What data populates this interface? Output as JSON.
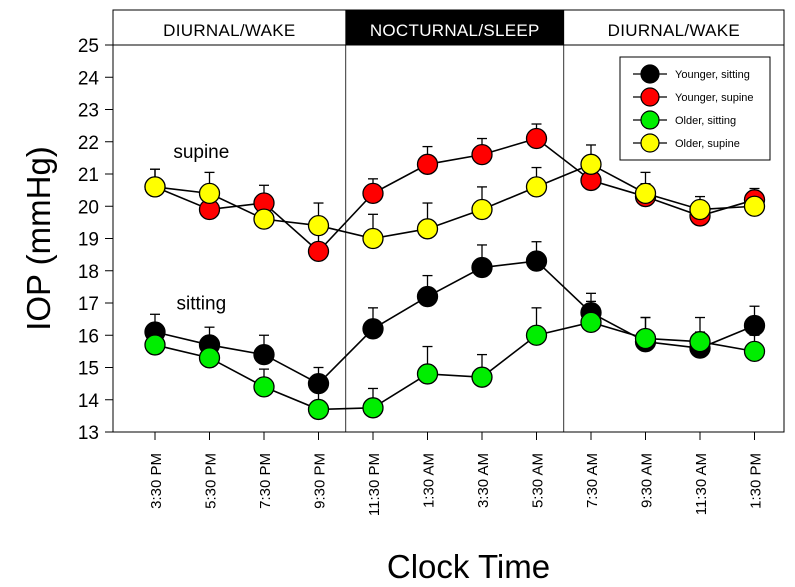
{
  "chart_data": {
    "type": "line",
    "xlabel": "Clock Time",
    "ylabel": "IOP (mmHg)",
    "ylim": [
      13,
      25
    ],
    "yticks": [
      13,
      14,
      15,
      16,
      17,
      18,
      19,
      20,
      21,
      22,
      23,
      24,
      25
    ],
    "categories": [
      "3:30 PM",
      "5:30 PM",
      "7:30 PM",
      "9:30 PM",
      "11:30 PM",
      "1:30 AM",
      "3:30 AM",
      "5:30 AM",
      "7:30 AM",
      "9:30 AM",
      "11:30 AM",
      "1:30 PM"
    ],
    "periods": [
      {
        "label": "DIURNAL/WAKE",
        "from": 0,
        "to": 3,
        "dark": false
      },
      {
        "label": "NOCTURNAL/SLEEP",
        "from": 4,
        "to": 7,
        "dark": true
      },
      {
        "label": "DIURNAL/WAKE",
        "from": 8,
        "to": 11,
        "dark": false
      }
    ],
    "annotations": [
      {
        "text": "supine",
        "x": 0.85,
        "y": 21.5
      },
      {
        "text": "sitting",
        "x": 0.85,
        "y": 16.8
      }
    ],
    "legend_position": "top-right",
    "series": [
      {
        "name": "Younger, sitting",
        "color": "#000000",
        "values": [
          16.1,
          15.7,
          15.4,
          14.5,
          16.2,
          17.2,
          18.1,
          18.3,
          16.7,
          15.8,
          15.6,
          16.3
        ],
        "errors": [
          0.55,
          0.55,
          0.6,
          0.5,
          0.65,
          0.65,
          0.7,
          0.6,
          0.6,
          0.75,
          0.5,
          0.6
        ]
      },
      {
        "name": "Younger, supine",
        "color": "#ff0000",
        "values": [
          20.6,
          19.9,
          20.1,
          18.6,
          20.4,
          21.3,
          21.6,
          22.1,
          20.8,
          20.3,
          19.7,
          20.2
        ],
        "errors": [
          0.55,
          0.35,
          0.55,
          0.6,
          0.45,
          0.55,
          0.5,
          0.45,
          0.6,
          0.4,
          0.35,
          0.35
        ]
      },
      {
        "name": "Older, sitting",
        "color": "#00ee00",
        "values": [
          15.7,
          15.3,
          14.4,
          13.7,
          13.75,
          14.8,
          14.7,
          16.0,
          16.4,
          15.9,
          15.8,
          15.5
        ],
        "errors": [
          0.4,
          0.4,
          0.55,
          0.55,
          0.6,
          0.85,
          0.7,
          0.85,
          0.65,
          0.65,
          0.75,
          0.5
        ]
      },
      {
        "name": "Older, supine",
        "color": "#ffff00",
        "values": [
          20.6,
          20.4,
          19.6,
          19.4,
          19.0,
          19.3,
          19.9,
          20.6,
          21.3,
          20.4,
          19.9,
          20.0
        ],
        "errors": [
          0.55,
          0.65,
          0.6,
          0.7,
          0.75,
          0.8,
          0.7,
          0.6,
          0.6,
          0.65,
          0.4,
          0.45
        ]
      }
    ]
  }
}
